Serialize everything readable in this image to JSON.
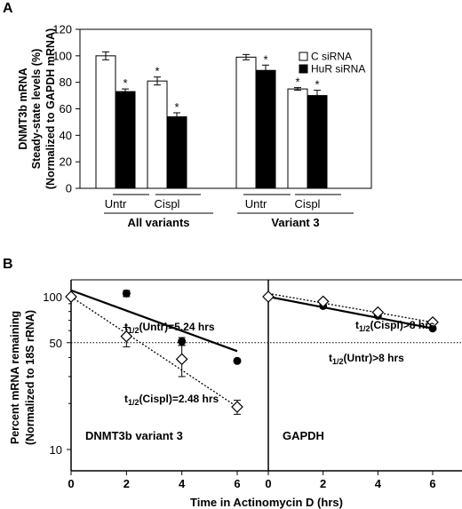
{
  "chart_data": [
    {
      "type": "bar",
      "panel_label": "A",
      "ylabel_lines": [
        "DNMT3b mRNA",
        "Steady-state levels (%)",
        "(Normalized to GAPDH  mRNA)"
      ],
      "ylim": [
        0,
        120
      ],
      "yticks": [
        0,
        20,
        40,
        60,
        80,
        100,
        120
      ],
      "categories": [
        "Untr",
        "Cispl",
        "Untr",
        "Cispl"
      ],
      "groups": [
        "All variants",
        "Variant 3"
      ],
      "series": [
        {
          "name": "C siRNA",
          "fill": "#ffffff",
          "values": [
            100,
            81,
            99,
            75
          ],
          "errors": [
            3,
            3,
            2,
            1
          ],
          "significant": [
            false,
            true,
            false,
            true
          ]
        },
        {
          "name": "HuR siRNA",
          "fill": "#000000",
          "values": [
            73,
            54,
            89,
            70
          ],
          "errors": [
            2,
            3,
            4,
            4
          ],
          "significant": [
            true,
            true,
            true,
            true
          ]
        }
      ],
      "significance_marker": "*",
      "legend_position": "top-right"
    },
    {
      "type": "scatter",
      "panel_label": "B",
      "ylabel_lines": [
        "Percent mRNA remaining",
        "(Normalized to 18S rRNA)"
      ],
      "xlabel": "Time in Actinomycin D (hrs)",
      "yscale": "log",
      "ylim": [
        8,
        150
      ],
      "yticks": [
        10,
        50,
        100
      ],
      "reference_line": 50,
      "panels": [
        {
          "title": "DNMT3b variant 3",
          "xlim": [
            0,
            7
          ],
          "xticks": [
            0,
            2,
            4,
            6
          ],
          "series": [
            {
              "name": "Untr",
              "marker": "circle-filled",
              "x": [
                0,
                2,
                4,
                6
              ],
              "y": [
                100,
                105,
                51,
                38
              ],
              "errors": [
                0,
                5,
                3,
                0
              ]
            },
            {
              "name": "Cispl",
              "marker": "diamond-open",
              "x": [
                0,
                2,
                4,
                6
              ],
              "y": [
                100,
                55,
                39,
                19
              ],
              "errors": [
                0,
                8,
                9,
                2
              ]
            }
          ],
          "fits": [
            {
              "series": "Untr",
              "style": "solid",
              "x": [
                0,
                6
              ],
              "y": [
                110,
                44
              ]
            },
            {
              "series": "Cispl",
              "style": "dotted",
              "x": [
                0,
                6
              ],
              "y": [
                100,
                19
              ]
            }
          ],
          "annotations": [
            {
              "pre": "t",
              "sub": "1/2",
              "post": "(Untr)=5.24 hrs"
            },
            {
              "pre": "t",
              "sub": "1/2",
              "post": "(Cispl)=2.48 hrs"
            }
          ]
        },
        {
          "title": "GAPDH",
          "xlim": [
            0,
            7
          ],
          "xticks": [
            0,
            2,
            4,
            6
          ],
          "series": [
            {
              "name": "Untr",
              "marker": "circle-filled",
              "x": [
                0,
                2,
                4,
                6
              ],
              "y": [
                100,
                87,
                75,
                62
              ],
              "errors": [
                0,
                0,
                0,
                0
              ]
            },
            {
              "name": "Cispl",
              "marker": "diamond-open",
              "x": [
                0,
                2,
                4,
                6
              ],
              "y": [
                100,
                93,
                79,
                68
              ],
              "errors": [
                0,
                0,
                0,
                0
              ]
            }
          ],
          "fits": [
            {
              "series": "Untr",
              "style": "solid",
              "x": [
                0,
                6
              ],
              "y": [
                100,
                62
              ]
            },
            {
              "series": "Cispl",
              "style": "dotted",
              "x": [
                0,
                6
              ],
              "y": [
                105,
                68
              ]
            }
          ],
          "annotations": [
            {
              "pre": "t",
              "sub": "1/2",
              "post": "(Cispl)>8 hrs"
            },
            {
              "pre": "t",
              "sub": "1/2",
              "post": "(Untr)>8 hrs"
            }
          ]
        }
      ]
    }
  ]
}
